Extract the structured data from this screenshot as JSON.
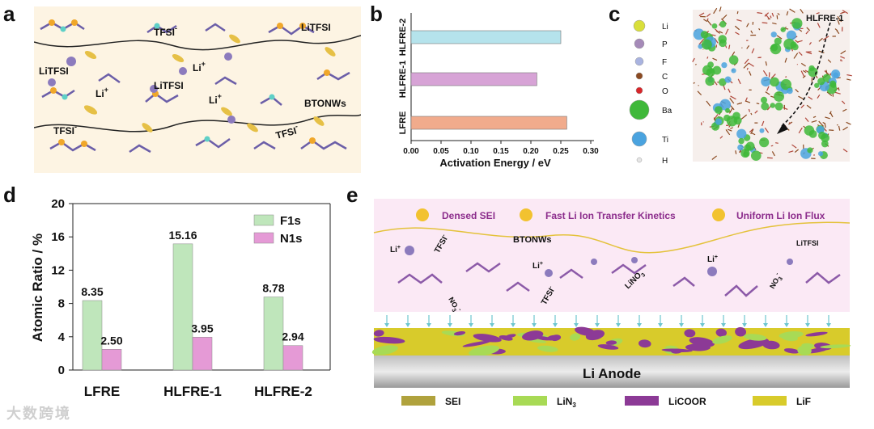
{
  "figure": {
    "panel_labels": [
      "a",
      "b",
      "c",
      "d",
      "e"
    ],
    "watermark": "大数跨境"
  },
  "panel_a": {
    "labels": [
      "LiTFSI",
      "TFSI",
      "-",
      "LiTFSI",
      "Li",
      "+",
      "LiTFSI",
      "Li",
      "+",
      "Li",
      "+",
      "BTONWs",
      "TFSI",
      "-",
      "TFSI",
      "-"
    ],
    "colors": {
      "background": "#fdf4e3",
      "nanowire": "#e6c046",
      "lithium": "#8c7bbd"
    }
  },
  "panel_c": {
    "title": "HLFRE-1",
    "legend": [
      {
        "symbol": "Li",
        "color": "#d9df3a"
      },
      {
        "symbol": "P",
        "color": "#a58ab8"
      },
      {
        "symbol": "F",
        "color": "#a9b3e0"
      },
      {
        "symbol": "C",
        "color": "#8b4a21"
      },
      {
        "symbol": "O",
        "color": "#d8262a"
      },
      {
        "symbol": "Ba",
        "color": "#3fb83a"
      },
      {
        "symbol": "Ti",
        "color": "#4aa3df"
      },
      {
        "symbol": "H",
        "color": "#e6e6e6"
      }
    ]
  },
  "panel_e": {
    "banner": [
      "Densed SEI",
      "Fast Li Ion Transfer Kinetics",
      "Uniform Li Ion Flux"
    ],
    "species": [
      "Li",
      "+",
      "TFSI",
      "-",
      "BTONWs",
      "NO",
      "3",
      "-",
      "Li",
      "+",
      "TFSI",
      "-",
      "LiNO",
      "3",
      "Li",
      "+",
      "NO",
      "3",
      "-",
      "LiTFSI"
    ],
    "anode_label": "Li   Anode",
    "legend": [
      {
        "label": "SEI",
        "color": "#b0a23d"
      },
      {
        "label": "LiN",
        "sub": "3",
        "color": "#a8da55"
      },
      {
        "label": "LiCOOR",
        "color": "#8c3a96"
      },
      {
        "label": "LiF",
        "color": "#d8cb2b"
      }
    ]
  },
  "chart_data": [
    {
      "type": "bar",
      "orientation": "horizontal",
      "panel": "b",
      "categories": [
        "HLFRE-2",
        "HLFRE-1",
        "LFRE"
      ],
      "values": [
        0.25,
        0.21,
        0.26
      ],
      "colors": [
        "#b5e3ec",
        "#d7a3d6",
        "#f1ab8c"
      ],
      "xlabel": "Activation Energy / eV",
      "ylabel": "",
      "xlim": [
        0.0,
        0.3
      ],
      "xticks": [
        "0.00",
        "0.05",
        "0.10",
        "0.15",
        "0.20",
        "0.25",
        "0.30"
      ]
    },
    {
      "type": "bar",
      "panel": "d",
      "categories": [
        "LFRE",
        "HLFRE-1",
        "HLFRE-2"
      ],
      "series": [
        {
          "name": "F1s",
          "values": [
            8.35,
            15.16,
            8.78
          ],
          "labels": [
            "8.35",
            "15.16",
            "8.78"
          ],
          "color": "#bfe6bb"
        },
        {
          "name": "N1s",
          "values": [
            2.5,
            3.95,
            2.94
          ],
          "labels": [
            "2.50",
            "3.95",
            "2.94"
          ],
          "color": "#e59ad6"
        }
      ],
      "xlabel": "",
      "ylabel": "Atomic Ratio / %",
      "ylim": [
        0,
        20
      ],
      "yticks": [
        "0",
        "4",
        "8",
        "12",
        "16",
        "20"
      ]
    }
  ]
}
